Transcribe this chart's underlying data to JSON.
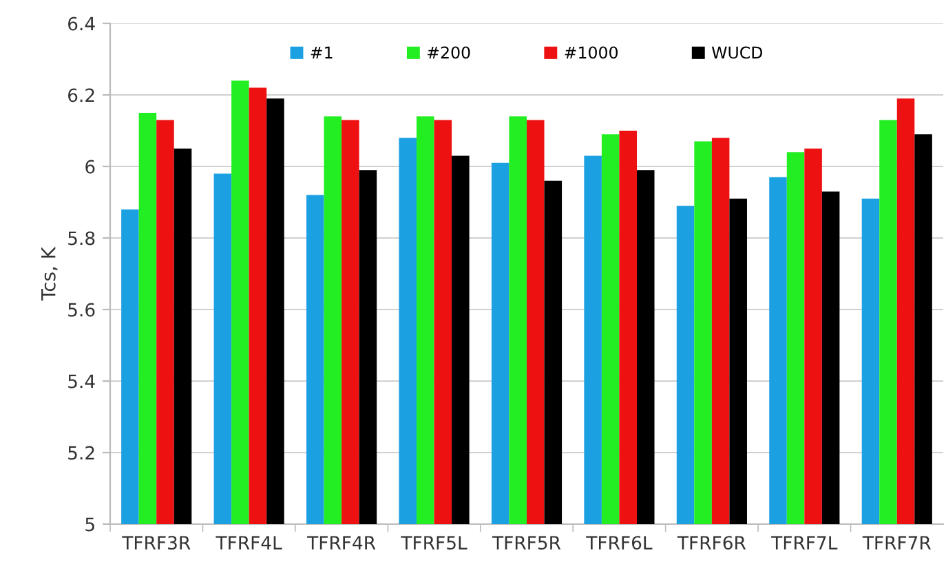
{
  "chart_data": {
    "type": "bar",
    "ylabel": "Tcs, K",
    "categories": [
      "TFRF3R",
      "TFRF4L",
      "TFRF4R",
      "TFRF5L",
      "TFRF5R",
      "TFRF6L",
      "TFRF6R",
      "TFRF7L",
      "TFRF7R"
    ],
    "series": [
      {
        "name": "#1",
        "color": "#1ba1e2",
        "values": [
          5.88,
          5.98,
          5.92,
          6.08,
          6.01,
          6.03,
          5.89,
          5.97,
          5.91
        ]
      },
      {
        "name": "#200",
        "color": "#22ee22",
        "values": [
          6.15,
          6.24,
          6.14,
          6.14,
          6.14,
          6.09,
          6.07,
          6.04,
          6.13
        ]
      },
      {
        "name": "#1000",
        "color": "#ee1111",
        "values": [
          6.13,
          6.22,
          6.13,
          6.13,
          6.13,
          6.1,
          6.08,
          6.05,
          6.19
        ]
      },
      {
        "name": "WUCD",
        "color": "#000000",
        "values": [
          6.05,
          6.19,
          5.99,
          6.03,
          5.96,
          5.99,
          5.91,
          5.93,
          6.09
        ]
      }
    ],
    "ylim": [
      5,
      6.4
    ],
    "yticks": [
      5,
      5.2,
      5.4,
      5.6,
      5.8,
      6,
      6.2,
      6.4
    ],
    "grid": "y",
    "legend": "top"
  }
}
